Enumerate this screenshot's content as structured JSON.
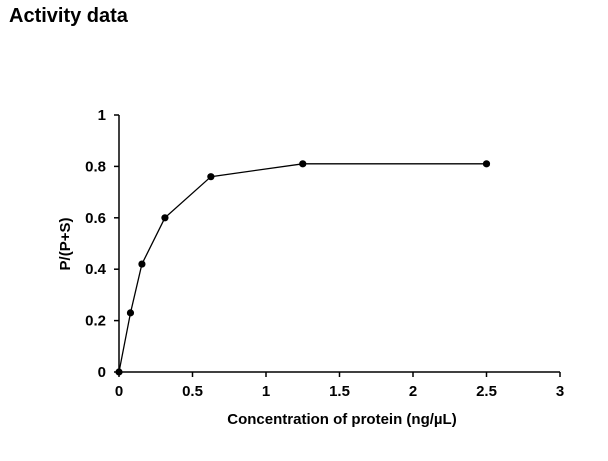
{
  "title": "Activity data",
  "chart_data": {
    "type": "line",
    "title": "",
    "xlabel": "Concentration of protein (ng/µL)",
    "ylabel": "P/(P+S)",
    "xlim": [
      0,
      3
    ],
    "ylim": [
      0,
      1
    ],
    "xticks": [
      0,
      0.5,
      1,
      1.5,
      2,
      2.5,
      3
    ],
    "xtick_labels": [
      "0",
      "0.5",
      "1",
      "1.5",
      "2",
      "2.5",
      "3"
    ],
    "yticks": [
      0,
      0.2,
      0.4,
      0.6,
      0.8,
      1
    ],
    "ytick_labels": [
      "0",
      "0.2",
      "0.4",
      "0.6",
      "0.8",
      "1"
    ],
    "grid": false,
    "legend": "none",
    "colors": {
      "line": "#000000",
      "marker": "#000000",
      "axis": "#000000"
    },
    "series": [
      {
        "x": [
          0,
          0.078,
          0.156,
          0.3125,
          0.625,
          1.25,
          2.5
        ],
        "y": [
          0,
          0.23,
          0.42,
          0.6,
          0.76,
          0.81,
          0.81
        ]
      }
    ]
  }
}
